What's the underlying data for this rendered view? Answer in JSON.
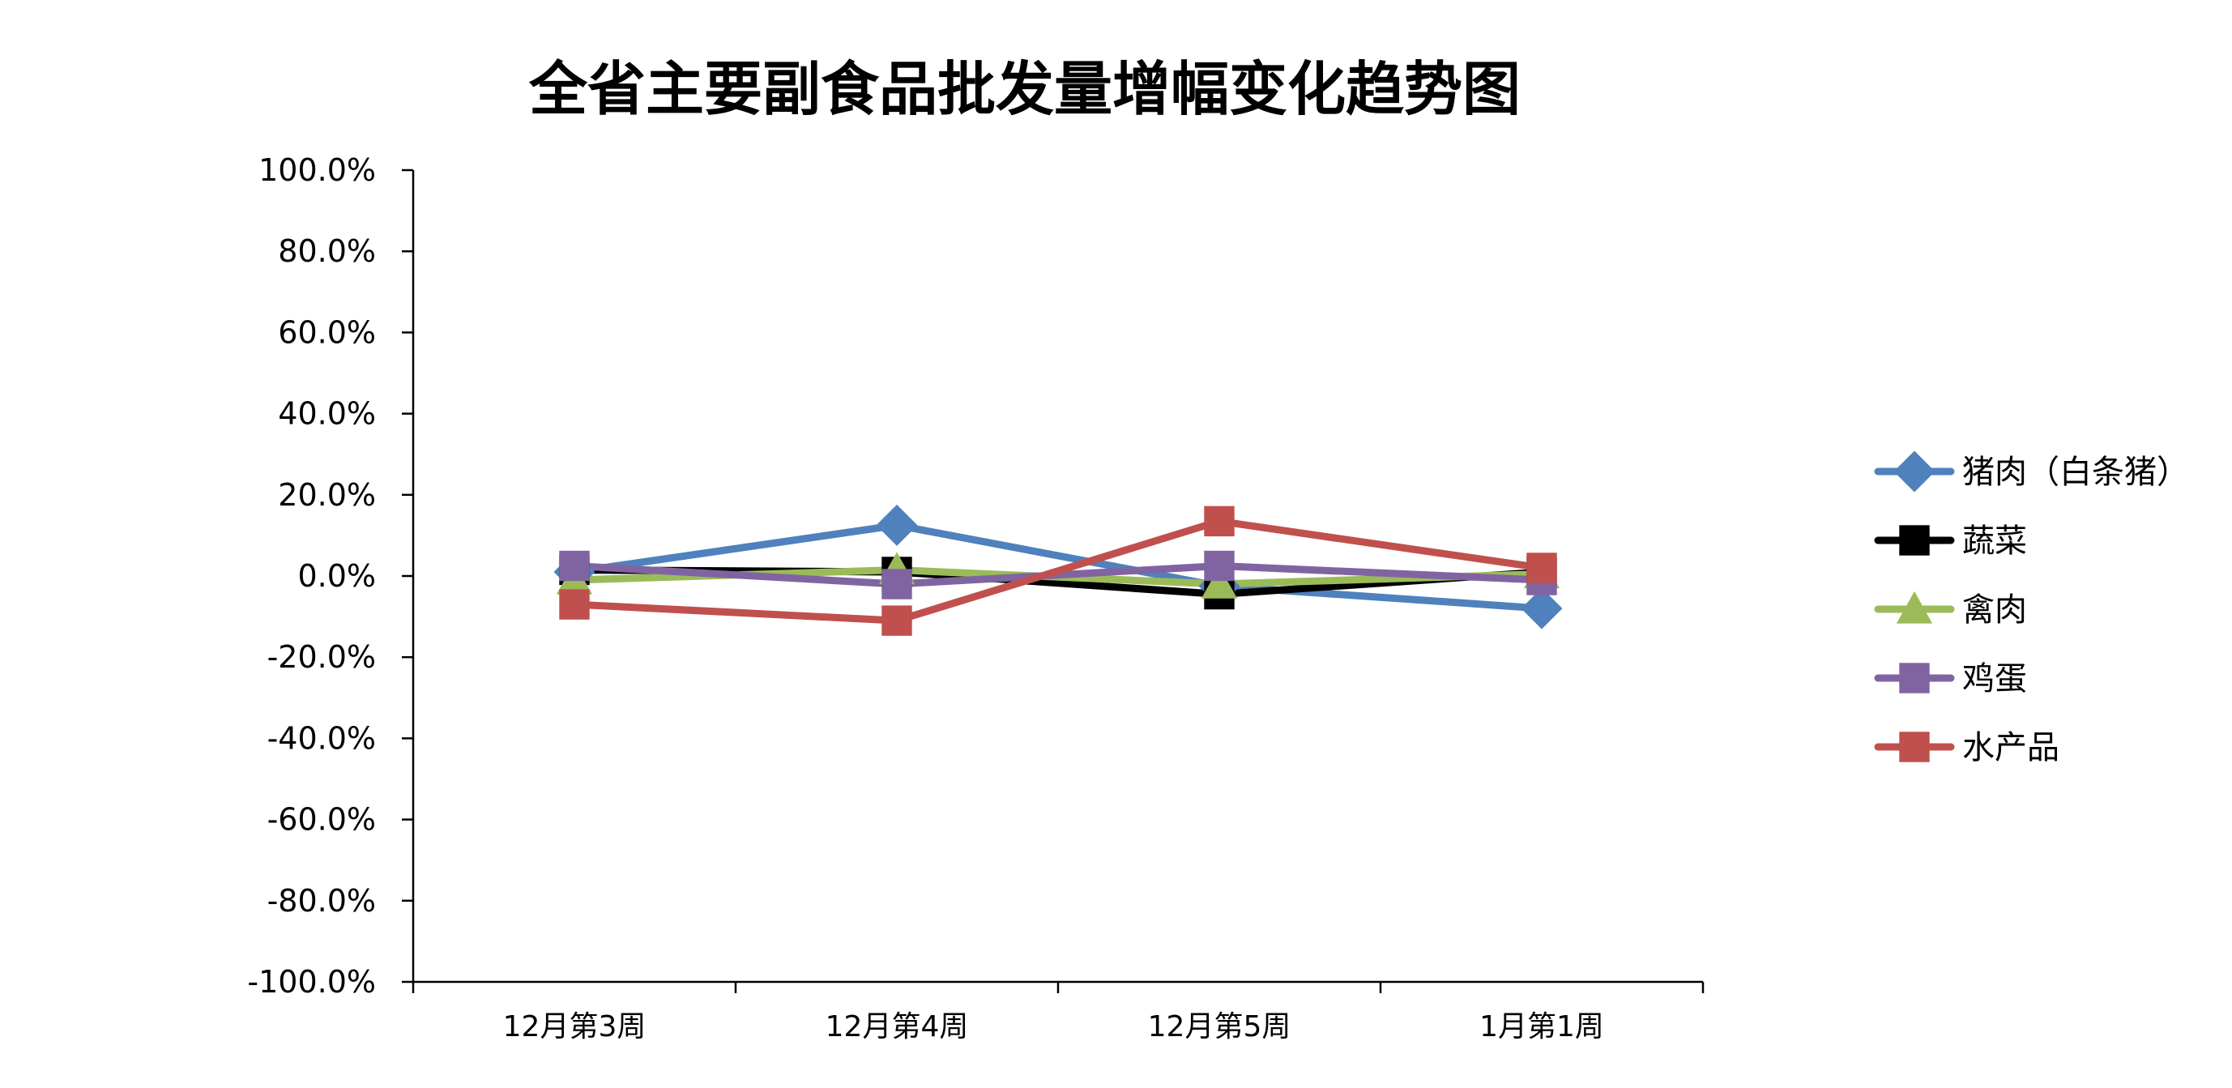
{
  "chart_data": {
    "type": "line",
    "title": "全省主要副食品批发量增幅变化趋势图",
    "xlabel": "",
    "ylabel": "",
    "categories": [
      "12月第3周",
      "12月第4周",
      "12月第5周",
      "1月第1周"
    ],
    "ylim": [
      -100,
      100
    ],
    "yticks": [
      100,
      80,
      60,
      40,
      20,
      0,
      -20,
      -40,
      -60,
      -80,
      -100
    ],
    "ytick_labels": [
      "100.0%",
      "80.0%",
      "60.0%",
      "40.0%",
      "20.0%",
      "0.0%",
      "-20.0%",
      "-40.0%",
      "-60.0%",
      "-80.0%",
      "-100.0%"
    ],
    "grid": false,
    "legend_position": "right",
    "series": [
      {
        "name": "猪肉（白条猪）",
        "values": [
          1.0,
          12.5,
          -2.5,
          -8.0
        ],
        "color": "#4F81BD",
        "marker": "diamond"
      },
      {
        "name": "蔬菜",
        "values": [
          1.5,
          1.0,
          -4.5,
          1.0
        ],
        "color": "#000000",
        "marker": "square"
      },
      {
        "name": "禽肉",
        "values": [
          -1.0,
          1.5,
          -2.0,
          0.5
        ],
        "color": "#9BBB59",
        "marker": "triangle"
      },
      {
        "name": "鸡蛋",
        "values": [
          2.5,
          -2.0,
          2.5,
          -1.0
        ],
        "color": "#8064A2",
        "marker": "square"
      },
      {
        "name": "水产品",
        "values": [
          -7.0,
          -11.0,
          13.5,
          2.0
        ],
        "color": "#C0504D",
        "marker": "square"
      }
    ]
  }
}
